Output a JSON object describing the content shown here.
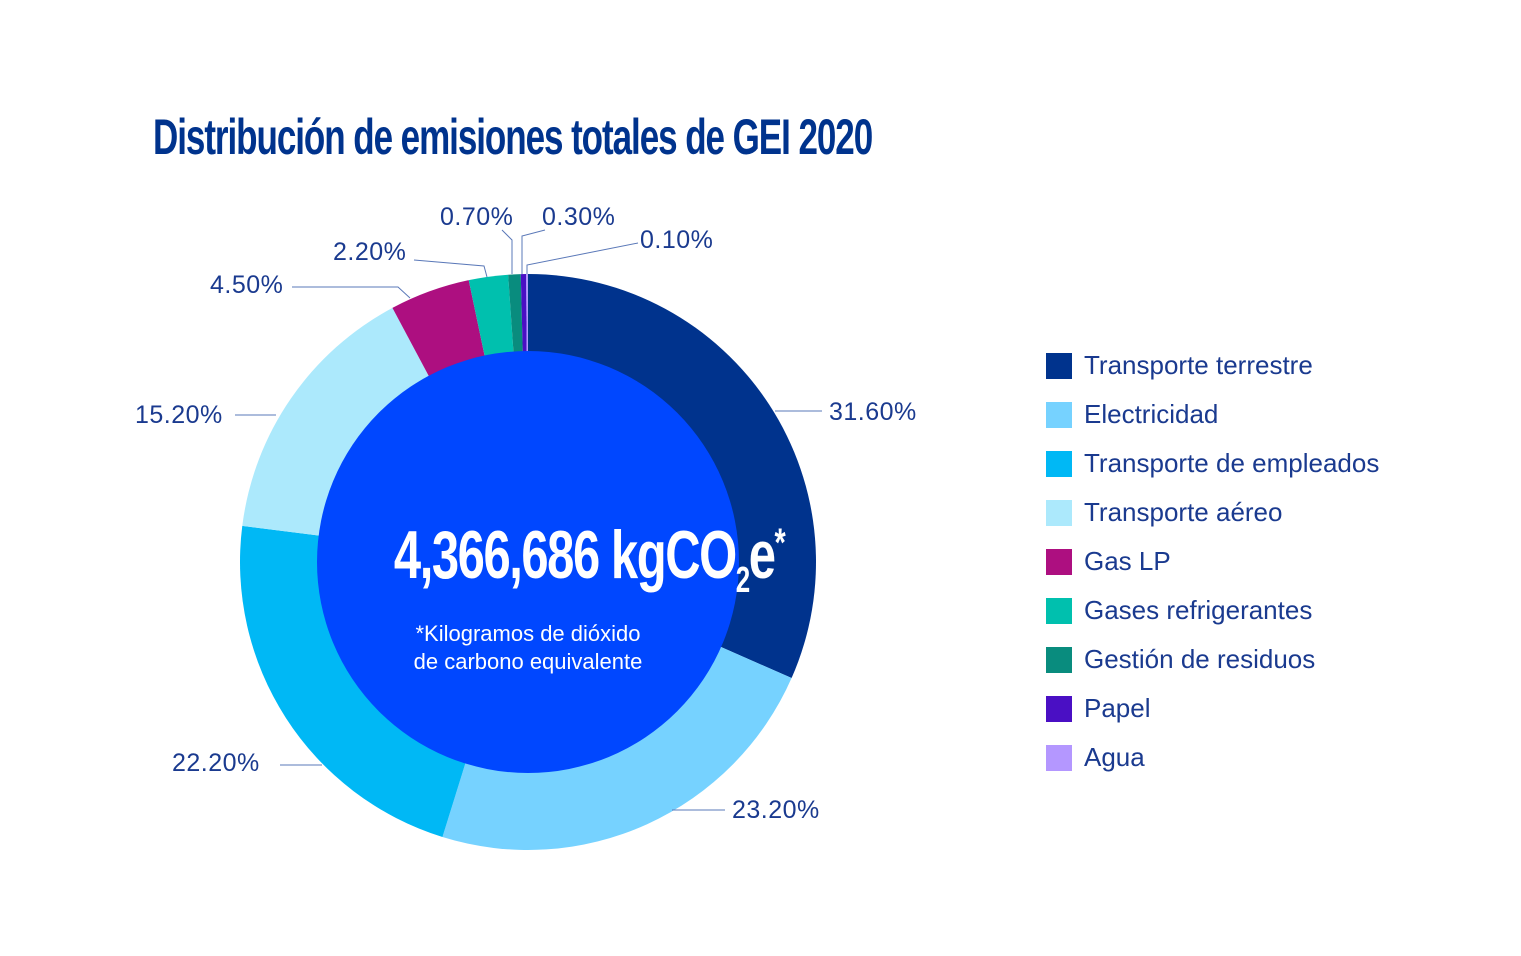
{
  "chart_data": {
    "type": "pie",
    "subtype": "donut",
    "title": "Distribución de emisiones totales de GEI 2020",
    "center_value": "4,366,686",
    "center_unit": "kgCO",
    "center_unit_sub": "2",
    "center_unit_end": "e",
    "center_asterisk": "*",
    "center_note_line1": "*Kilogramos de dióxido",
    "center_note_line2": "de carbono equivalente",
    "legend_position": "right",
    "slices": [
      {
        "label": "Transporte terrestre",
        "value": 31.6,
        "display": "31.60%",
        "color": "#00338d"
      },
      {
        "label": "Electricidad",
        "value": 23.2,
        "display": "23.20%",
        "color": "#76d2ff"
      },
      {
        "label": "Transporte de empleados",
        "value": 22.2,
        "display": "22.20%",
        "color": "#00b8f5"
      },
      {
        "label": "Transporte aéreo",
        "value": 15.2,
        "display": "15.20%",
        "color": "#ace9fc"
      },
      {
        "label": "Gas LP",
        "value": 4.5,
        "display": "4.50%",
        "color": "#ad0f80"
      },
      {
        "label": "Gases refrigerantes",
        "value": 2.2,
        "display": "2.20%",
        "color": "#00c0ae"
      },
      {
        "label": "Gestión de residuos",
        "value": 0.7,
        "display": "0.70%",
        "color": "#098c7e"
      },
      {
        "label": "Papel",
        "value": 0.3,
        "display": "0.30%",
        "color": "#4a0fc4"
      },
      {
        "label": "Agua",
        "value": 0.1,
        "display": "0.10%",
        "color": "#b497ff"
      }
    ],
    "inner_color": "#0047ff"
  }
}
